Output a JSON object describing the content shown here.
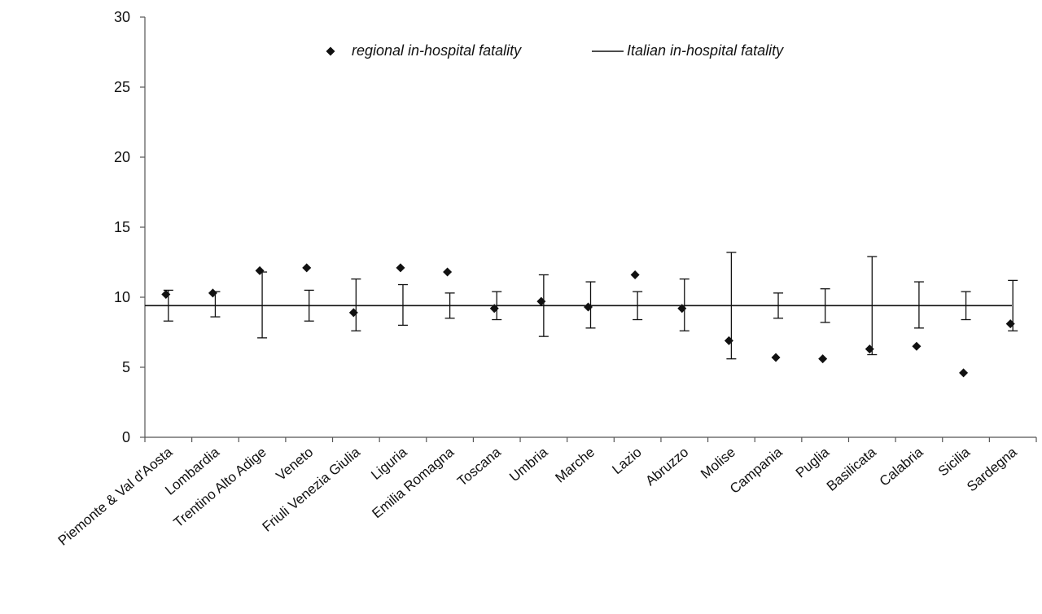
{
  "chart_data": {
    "type": "scatter",
    "title": "",
    "xlabel": "",
    "ylabel": "",
    "ylim": [
      0,
      30
    ],
    "yticks": [
      0,
      5,
      10,
      15,
      20,
      25,
      30
    ],
    "grid": false,
    "legend_position": "top-center",
    "categories": [
      "Piemonte & Val d'Aosta",
      "Lombardia",
      "Trentino Alto Adige",
      "Veneto",
      "Friuli Venezia Giulia",
      "Liguria",
      "Emilia Romagna",
      "Toscana",
      "Umbria",
      "Marche",
      "Lazio",
      "Abruzzo",
      "Molise",
      "Campania",
      "Puglia",
      "Basilicata",
      "Calabria",
      "Sicilia",
      "Sardegna"
    ],
    "series": [
      {
        "name": "regional in-hospital fatality",
        "marker": "diamond",
        "values": [
          10.2,
          10.3,
          11.9,
          12.1,
          8.9,
          12.1,
          11.8,
          9.2,
          9.7,
          9.3,
          11.6,
          9.2,
          6.9,
          5.7,
          5.6,
          6.3,
          6.5,
          4.6,
          8.1
        ]
      },
      {
        "name": "Italian in-hospital fatality",
        "marker": "line",
        "value": 9.4,
        "ci_lower": [
          8.3,
          8.6,
          7.1,
          8.3,
          7.6,
          8.0,
          8.5,
          8.4,
          7.2,
          7.8,
          8.4,
          7.6,
          5.6,
          8.5,
          8.2,
          5.9,
          7.8,
          8.4,
          7.6
        ],
        "ci_upper": [
          10.5,
          10.4,
          11.8,
          10.5,
          11.3,
          10.9,
          10.3,
          10.4,
          11.6,
          11.1,
          10.4,
          11.3,
          13.2,
          10.3,
          10.6,
          12.9,
          11.1,
          10.4,
          11.2
        ]
      }
    ],
    "colors": {
      "marker": "#111111",
      "line": "#111111",
      "axis": "#555555"
    }
  }
}
